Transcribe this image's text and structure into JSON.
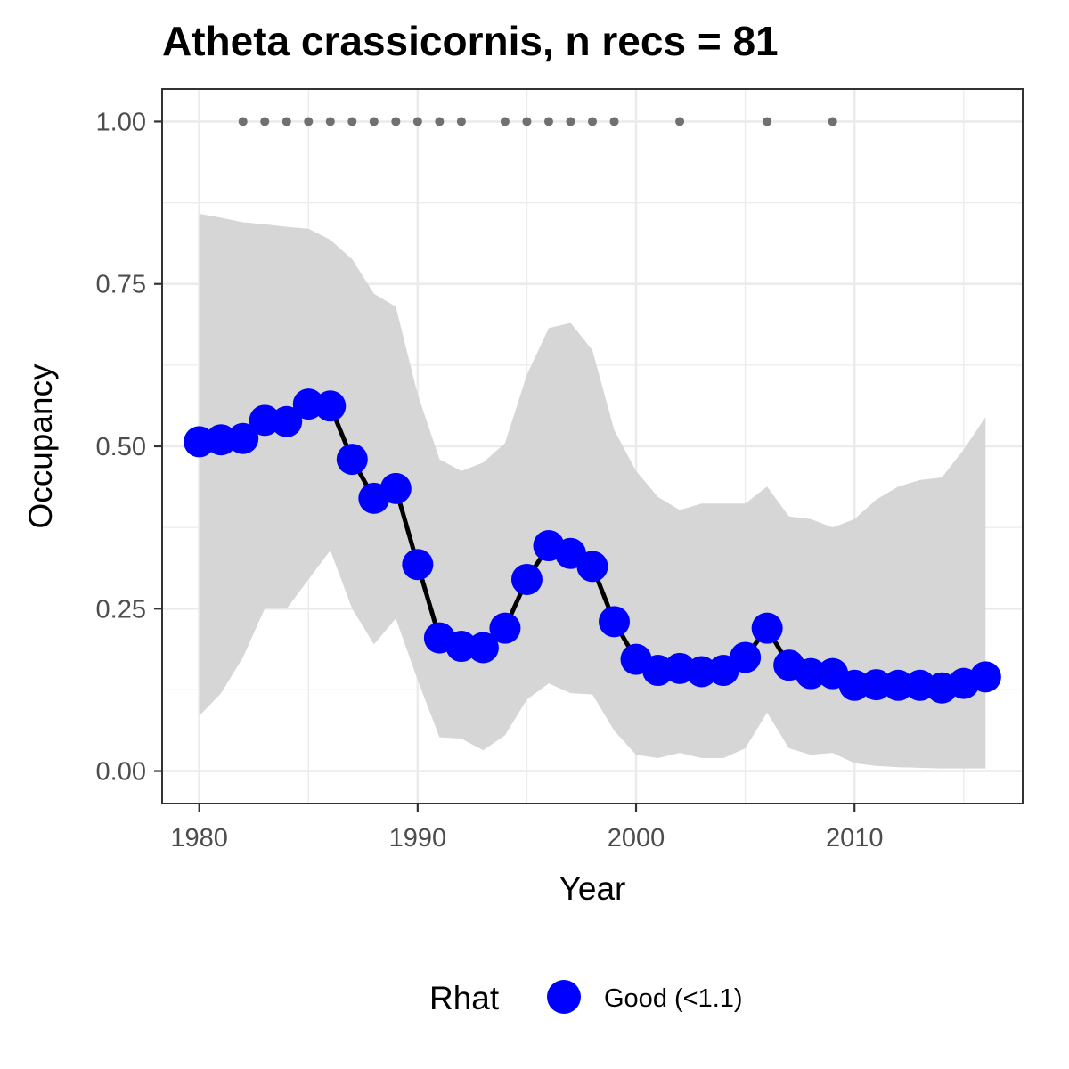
{
  "chart_data": {
    "type": "line",
    "title": "Atheta crassicornis, n recs = 81",
    "xlabel": "Year",
    "ylabel": "Occupancy",
    "xlim": [
      1978.3,
      2017.7
    ],
    "ylim": [
      -0.05,
      1.05
    ],
    "x_ticks": [
      1980,
      1990,
      2000,
      2010
    ],
    "x_tick_labels": [
      "1980",
      "1990",
      "2000",
      "2010"
    ],
    "y_ticks": [
      0,
      0.25,
      0.5,
      0.75,
      1.0
    ],
    "y_tick_labels": [
      "0.00",
      "0.25",
      "0.50",
      "0.75",
      "1.00"
    ],
    "grid": true,
    "legend": {
      "title": "Rhat",
      "placement": "bottom",
      "entries": [
        {
          "label": "Good (<1.1)",
          "color": "#0000ff"
        }
      ]
    },
    "x": [
      1980,
      1981,
      1982,
      1983,
      1984,
      1985,
      1986,
      1987,
      1988,
      1989,
      1990,
      1991,
      1992,
      1993,
      1994,
      1995,
      1996,
      1997,
      1998,
      1999,
      2000,
      2001,
      2002,
      2003,
      2004,
      2005,
      2006,
      2007,
      2008,
      2009,
      2010,
      2011,
      2012,
      2013,
      2014,
      2015,
      2016
    ],
    "series": [
      {
        "values": [
          0.507,
          0.51,
          0.512,
          0.54,
          0.538,
          0.565,
          0.562,
          0.48,
          0.42,
          0.435,
          0.318,
          0.205,
          0.192,
          0.19,
          0.22,
          0.295,
          0.347,
          0.335,
          0.315,
          0.23,
          0.172,
          0.155,
          0.158,
          0.153,
          0.155,
          0.175,
          0.22,
          0.163,
          0.15,
          0.15,
          0.132,
          0.133,
          0.132,
          0.132,
          0.128,
          0.135,
          0.145
        ],
        "lower": [
          0.085,
          0.12,
          0.175,
          0.25,
          0.25,
          0.295,
          0.34,
          0.25,
          0.195,
          0.235,
          0.14,
          0.052,
          0.05,
          0.032,
          0.055,
          0.11,
          0.135,
          0.12,
          0.118,
          0.062,
          0.025,
          0.02,
          0.028,
          0.02,
          0.02,
          0.035,
          0.09,
          0.035,
          0.025,
          0.028,
          0.012,
          0.008,
          0.006,
          0.005,
          0.004,
          0.004,
          0.004
        ],
        "upper": [
          0.858,
          0.852,
          0.845,
          0.842,
          0.838,
          0.835,
          0.818,
          0.788,
          0.735,
          0.715,
          0.58,
          0.48,
          0.462,
          0.475,
          0.505,
          0.61,
          0.682,
          0.69,
          0.648,
          0.525,
          0.462,
          0.422,
          0.402,
          0.412,
          0.412,
          0.412,
          0.438,
          0.392,
          0.388,
          0.375,
          0.388,
          0.418,
          0.438,
          0.448,
          0.452,
          0.495,
          0.545
        ],
        "color": "#0000ff"
      }
    ],
    "records_y": 1.0,
    "record_years": [
      1982,
      1983,
      1984,
      1985,
      1986,
      1987,
      1988,
      1989,
      1990,
      1991,
      1992,
      1994,
      1995,
      1996,
      1997,
      1998,
      1999,
      2002,
      2006,
      2009
    ],
    "colors": {
      "line": "#000000",
      "points": "#0000ff",
      "ribbon": "#d6d6d6",
      "records": "#707070",
      "grid": "#ebebeb",
      "panel_border": "#333333"
    }
  }
}
